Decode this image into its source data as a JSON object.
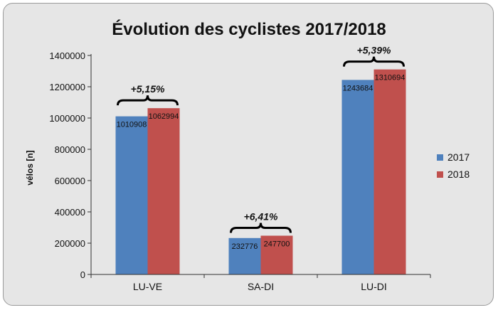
{
  "chart_data": {
    "type": "bar",
    "title": "Évolution des cyclistes 2017/2018",
    "ylabel": "vélos [n]",
    "xlabel": "",
    "ylim": [
      0,
      1400000
    ],
    "yticks": [
      0,
      200000,
      400000,
      600000,
      800000,
      1000000,
      1200000,
      1400000
    ],
    "categories": [
      "LU-VE",
      "SA-DI",
      "LU-DI"
    ],
    "series": [
      {
        "name": "2017",
        "color": "#4f81bd",
        "values": [
          1010908,
          232776,
          1243684
        ]
      },
      {
        "name": "2018",
        "color": "#c0504d",
        "values": [
          1062994,
          247700,
          1310694
        ]
      }
    ],
    "annotations": [
      "+5,15%",
      "+6,41%",
      "+5,39%"
    ],
    "legend": "right",
    "grid": false
  }
}
